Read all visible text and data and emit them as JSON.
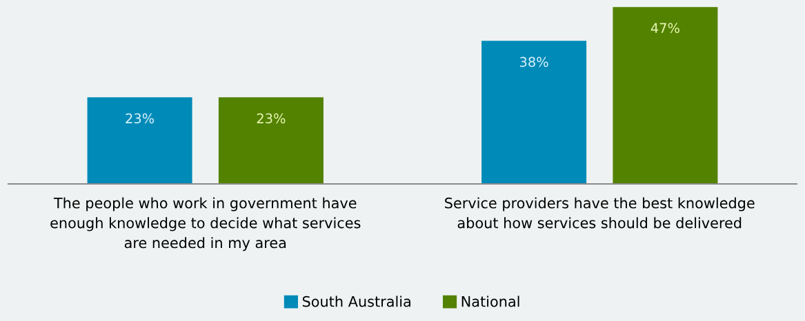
{
  "chart_data": {
    "type": "bar",
    "categories": [
      "The people who work in government have\nenough knowledge to decide what services\nare needed in my area",
      "Service providers have the best knowledge\nabout how services should be delivered"
    ],
    "series": [
      {
        "name": "South Australia",
        "color": "#008ab8",
        "values": [
          23,
          38
        ],
        "value_labels": [
          "23%",
          "38%"
        ]
      },
      {
        "name": "National",
        "color": "#538200",
        "values": [
          23,
          47
        ],
        "value_labels": [
          "23%",
          "47%"
        ]
      }
    ],
    "legend": "bottom",
    "tick_labels": "x"
  }
}
